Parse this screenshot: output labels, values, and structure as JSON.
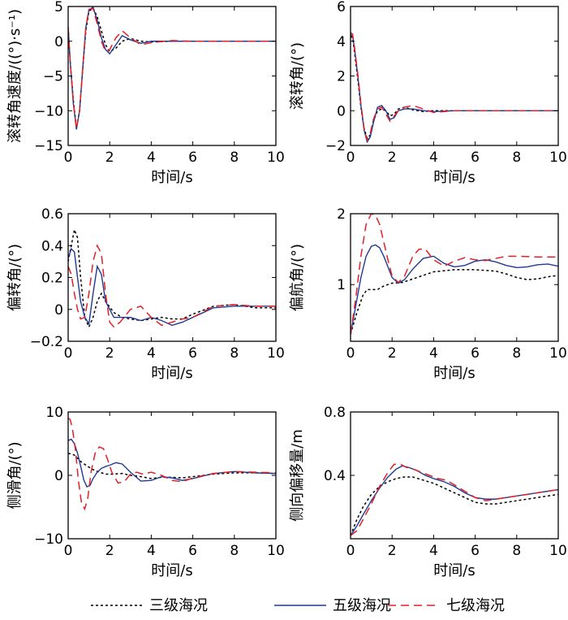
{
  "legend": [
    {
      "key": "s3",
      "label": "三级海况",
      "color": "#000000",
      "dash": "3,3"
    },
    {
      "key": "s5",
      "label": "五级海况",
      "color": "#1f3a93",
      "dash": ""
    },
    {
      "key": "s7",
      "label": "七级海况",
      "color": "#e0202a",
      "dash": "10,6"
    }
  ],
  "chart_data": [
    {
      "type": "line",
      "id": "roll-rate",
      "ylabel": "滚转角速度/((°)·s⁻¹)",
      "xlabel": "时间/s",
      "xlim": [
        0,
        10
      ],
      "ylim": [
        -15,
        5
      ],
      "xticks": [
        0,
        2,
        4,
        6,
        8,
        10
      ],
      "yticks": [
        -15,
        -10,
        -5,
        0,
        5
      ],
      "ytick_labels": [
        "−15",
        "−10",
        "−5",
        "0",
        "5"
      ],
      "series": [
        {
          "key": "s3",
          "x": [
            0,
            0.1,
            0.25,
            0.4,
            0.55,
            0.7,
            0.85,
            1.0,
            1.2,
            1.4,
            1.6,
            1.8,
            2.0,
            2.3,
            2.6,
            3.0,
            3.5,
            4.0,
            5.0,
            6.0,
            7.0,
            10.0
          ],
          "y": [
            2,
            -3,
            -8.5,
            -12.5,
            -10,
            -4,
            1.5,
            4.3,
            4.8,
            3.5,
            1.5,
            -0.5,
            -1.5,
            -1,
            0,
            0.4,
            0,
            -0.1,
            0,
            0,
            0,
            0
          ]
        },
        {
          "key": "s5",
          "x": [
            0,
            0.1,
            0.25,
            0.4,
            0.55,
            0.7,
            0.85,
            1.0,
            1.2,
            1.4,
            1.6,
            1.8,
            2.0,
            2.3,
            2.6,
            3.0,
            3.5,
            4.0,
            5.0,
            6.0,
            7.0,
            10.0
          ],
          "y": [
            2,
            -3,
            -9,
            -12.7,
            -10,
            -4,
            2,
            4.5,
            4.9,
            3,
            0.5,
            -1.2,
            -1.8,
            -0.5,
            0.8,
            0.2,
            -0.3,
            0,
            0,
            0,
            0,
            0
          ]
        },
        {
          "key": "s7",
          "x": [
            0,
            0.1,
            0.25,
            0.4,
            0.55,
            0.7,
            0.85,
            1.0,
            1.2,
            1.4,
            1.6,
            1.8,
            2.0,
            2.3,
            2.6,
            3.0,
            3.5,
            4.0,
            5.0,
            6.0,
            7.0,
            10.0
          ],
          "y": [
            2,
            -3,
            -8.8,
            -12.6,
            -10,
            -4,
            2,
            4.6,
            4.7,
            2.5,
            0,
            -1.5,
            -1.2,
            0.5,
            1.5,
            0.5,
            -0.5,
            -0.2,
            0.1,
            0,
            0,
            0
          ]
        }
      ]
    },
    {
      "type": "line",
      "id": "roll-angle",
      "ylabel": "滚转角/(°)",
      "xlabel": "时间/s",
      "xlim": [
        0,
        10
      ],
      "ylim": [
        -2,
        6
      ],
      "xticks": [
        0,
        2,
        4,
        6,
        8,
        10
      ],
      "yticks": [
        -2,
        0,
        2,
        4,
        6
      ],
      "ytick_labels": [
        "−2",
        "0",
        "2",
        "4",
        "6"
      ],
      "series": [
        {
          "key": "s3",
          "x": [
            0,
            0.1,
            0.2,
            0.35,
            0.5,
            0.65,
            0.8,
            0.95,
            1.1,
            1.3,
            1.5,
            1.7,
            1.9,
            2.1,
            2.3,
            2.6,
            3.0,
            3.5,
            4.0,
            5.0,
            7.0,
            10.0
          ],
          "y": [
            4.3,
            4.2,
            3.3,
            1.8,
            0.2,
            -1,
            -1.6,
            -1.4,
            -0.6,
            0,
            0.1,
            0,
            -0.3,
            -0.2,
            0.1,
            0.2,
            0.05,
            -0.05,
            0,
            0,
            0,
            0
          ]
        },
        {
          "key": "s5",
          "x": [
            0,
            0.1,
            0.2,
            0.35,
            0.5,
            0.65,
            0.8,
            0.95,
            1.1,
            1.3,
            1.5,
            1.7,
            1.9,
            2.1,
            2.3,
            2.6,
            3.0,
            3.5,
            4.0,
            5.0,
            7.0,
            10.0
          ],
          "y": [
            4.4,
            4.3,
            3.5,
            2,
            0.3,
            -1.1,
            -1.8,
            -1.5,
            -0.7,
            0.2,
            0.3,
            0,
            -0.5,
            -0.4,
            0,
            0.1,
            0.1,
            0,
            -0.05,
            0,
            0,
            0
          ]
        },
        {
          "key": "s7",
          "x": [
            0,
            0.1,
            0.2,
            0.35,
            0.5,
            0.65,
            0.8,
            0.95,
            1.1,
            1.3,
            1.5,
            1.7,
            1.9,
            2.1,
            2.3,
            2.6,
            3.0,
            3.5,
            4.0,
            5.0,
            7.0,
            10.0
          ],
          "y": [
            4.5,
            4.4,
            3.6,
            2.1,
            0.4,
            -1,
            -1.7,
            -1.3,
            -0.5,
            0.1,
            0.2,
            -0.2,
            -0.6,
            -0.3,
            0,
            0.2,
            0.3,
            0.1,
            -0.1,
            0,
            0,
            0
          ]
        }
      ]
    },
    {
      "type": "line",
      "id": "yaw-angle",
      "ylabel": "偏转角/(°)",
      "xlabel": "时间/s",
      "xlim": [
        0,
        10
      ],
      "ylim": [
        -0.2,
        0.6
      ],
      "xticks": [
        0,
        2,
        4,
        6,
        8,
        10
      ],
      "yticks": [
        -0.2,
        0,
        0.2,
        0.4,
        0.6
      ],
      "ytick_labels": [
        "−0.2",
        "0",
        "0.2",
        "0.4",
        "0.6"
      ],
      "series": [
        {
          "key": "s3",
          "x": [
            0,
            0.15,
            0.3,
            0.45,
            0.6,
            0.8,
            1.0,
            1.2,
            1.4,
            1.6,
            1.8,
            2.2,
            2.6,
            3.0,
            3.5,
            4.0,
            4.5,
            5.0,
            5.5,
            6.0,
            7.0,
            8.0,
            9.0,
            10.0
          ],
          "y": [
            0.3,
            0.4,
            0.5,
            0.45,
            0.2,
            -0.05,
            -0.11,
            -0.05,
            0.05,
            0.1,
            0.05,
            -0.02,
            -0.05,
            -0.06,
            -0.07,
            -0.06,
            -0.05,
            -0.06,
            -0.06,
            -0.03,
            0.02,
            0.03,
            0.01,
            0.01
          ]
        },
        {
          "key": "s5",
          "x": [
            0,
            0.15,
            0.3,
            0.45,
            0.6,
            0.8,
            1.0,
            1.2,
            1.4,
            1.6,
            1.8,
            2.2,
            2.6,
            3.0,
            3.5,
            4.0,
            4.5,
            5.0,
            5.5,
            6.0,
            7.0,
            8.0,
            9.0,
            10.0
          ],
          "y": [
            0.32,
            0.38,
            0.36,
            0.2,
            0.05,
            -0.05,
            -0.09,
            0.1,
            0.27,
            0.22,
            0.05,
            -0.05,
            -0.05,
            -0.05,
            -0.07,
            -0.05,
            -0.07,
            -0.1,
            -0.08,
            -0.05,
            0.01,
            0.02,
            0.02,
            0.02
          ]
        },
        {
          "key": "s7",
          "x": [
            0,
            0.15,
            0.3,
            0.45,
            0.6,
            0.8,
            1.0,
            1.2,
            1.4,
            1.6,
            1.8,
            2.0,
            2.2,
            2.5,
            3.0,
            3.5,
            4.0,
            4.5,
            5.0,
            5.5,
            6.0,
            7.0,
            8.0,
            9.0,
            10.0
          ],
          "y": [
            0.27,
            0.22,
            0.1,
            0,
            -0.06,
            -0.05,
            0.1,
            0.3,
            0.4,
            0.35,
            0.1,
            -0.08,
            -0.11,
            -0.08,
            0,
            0.02,
            -0.05,
            -0.1,
            -0.08,
            -0.06,
            -0.05,
            0.02,
            0.03,
            0.02,
            0.02
          ]
        }
      ]
    },
    {
      "type": "line",
      "id": "heading-angle",
      "ylabel": "偏航角/(°)",
      "xlabel": "时间/s",
      "xlim": [
        0,
        10
      ],
      "ylim": [
        0.2,
        2
      ],
      "xticks": [
        0,
        2,
        4,
        6,
        8,
        10
      ],
      "yticks": [
        1,
        2
      ],
      "ytick_labels": [
        "1",
        "2"
      ],
      "series": [
        {
          "key": "s3",
          "x": [
            0,
            0.3,
            0.6,
            0.8,
            1.0,
            1.3,
            1.6,
            2.0,
            2.5,
            3.0,
            3.5,
            4.0,
            5.0,
            6.0,
            7.0,
            7.5,
            8.0,
            8.5,
            9.0,
            9.5,
            10.0
          ],
          "y": [
            0.3,
            0.6,
            0.85,
            0.93,
            0.93,
            0.93,
            0.98,
            1.02,
            1.03,
            1.08,
            1.13,
            1.18,
            1.21,
            1.21,
            1.19,
            1.15,
            1.1,
            1.07,
            1.08,
            1.11,
            1.13
          ]
        },
        {
          "key": "s5",
          "x": [
            0,
            0.25,
            0.5,
            0.75,
            1.0,
            1.2,
            1.4,
            1.6,
            1.8,
            2.0,
            2.3,
            2.6,
            3.0,
            3.5,
            4.0,
            4.5,
            5.0,
            5.5,
            6.0,
            6.5,
            7.0,
            7.5,
            8.0,
            8.5,
            9.0,
            9.5,
            10.0
          ],
          "y": [
            0.3,
            0.7,
            1.1,
            1.4,
            1.54,
            1.56,
            1.52,
            1.4,
            1.25,
            1.1,
            1.02,
            1.07,
            1.22,
            1.37,
            1.4,
            1.3,
            1.25,
            1.27,
            1.33,
            1.35,
            1.32,
            1.27,
            1.24,
            1.25,
            1.28,
            1.29,
            1.26
          ]
        },
        {
          "key": "s7",
          "x": [
            0,
            0.25,
            0.5,
            0.75,
            1.0,
            1.2,
            1.4,
            1.6,
            1.8,
            2.0,
            2.3,
            2.6,
            3.0,
            3.3,
            3.6,
            4.0,
            4.5,
            5.0,
            5.5,
            6.0,
            6.5,
            7.0,
            7.5,
            8.0,
            9.0,
            10.0
          ],
          "y": [
            0.3,
            0.8,
            1.4,
            1.85,
            2.0,
            1.98,
            1.85,
            1.6,
            1.35,
            1.12,
            1.03,
            1.12,
            1.4,
            1.5,
            1.5,
            1.35,
            1.26,
            1.33,
            1.38,
            1.35,
            1.34,
            1.37,
            1.4,
            1.4,
            1.39,
            1.39
          ]
        }
      ]
    },
    {
      "type": "line",
      "id": "sideslip-angle",
      "ylabel": "侧滑角/(°)",
      "xlabel": "时间/s",
      "xlim": [
        0,
        10
      ],
      "ylim": [
        -10,
        10
      ],
      "xticks": [
        0,
        2,
        4,
        6,
        8,
        10
      ],
      "yticks": [
        -10,
        0,
        10
      ],
      "ytick_labels": [
        "−10",
        "0",
        "10"
      ],
      "series": [
        {
          "key": "s3",
          "x": [
            0,
            0.3,
            0.6,
            0.9,
            1.2,
            1.5,
            1.8,
            2.2,
            2.6,
            3.0,
            3.5,
            4.0,
            4.5,
            5.0,
            5.5,
            6.0,
            7.0,
            8.0,
            9.0,
            10.0
          ],
          "y": [
            3.5,
            3.2,
            2.2,
            1.5,
            0.9,
            0.5,
            0.2,
            0.2,
            0.3,
            0,
            -0.2,
            -0.5,
            -0.3,
            -0.3,
            -0.4,
            -0.2,
            0.2,
            0.4,
            0.4,
            0.3
          ]
        },
        {
          "key": "s5",
          "x": [
            0,
            0.15,
            0.3,
            0.45,
            0.6,
            0.75,
            0.9,
            1.05,
            1.2,
            1.4,
            1.6,
            1.8,
            2.0,
            2.3,
            2.6,
            3.0,
            3.5,
            4.0,
            4.5,
            5.0,
            5.5,
            6.0,
            7.0,
            8.0,
            9.0,
            10.0
          ],
          "y": [
            5.5,
            5.7,
            5,
            3.5,
            1.5,
            -0.7,
            -1.8,
            -1.6,
            -0.5,
            0.5,
            1.1,
            1.4,
            1.6,
            2.0,
            1.8,
            0.5,
            -0.9,
            -0.8,
            -0.2,
            -0.4,
            -0.8,
            -0.5,
            0.3,
            0.6,
            0.4,
            0.3
          ]
        },
        {
          "key": "s7",
          "x": [
            0,
            0.1,
            0.2,
            0.35,
            0.5,
            0.65,
            0.8,
            0.95,
            1.1,
            1.3,
            1.5,
            1.7,
            1.9,
            2.1,
            2.4,
            2.7,
            3.0,
            3.3,
            3.6,
            4.0,
            4.5,
            5.0,
            5.5,
            6.0,
            7.0,
            8.0,
            9.0,
            10.0
          ],
          "y": [
            9,
            8.8,
            7.5,
            4,
            -1,
            -4.5,
            -5.3,
            -3.5,
            0.5,
            3.5,
            4.5,
            4.2,
            2.5,
            0.5,
            -1.2,
            -1.0,
            0.2,
            0.5,
            0.2,
            0.5,
            0,
            -0.8,
            -1.0,
            -0.4,
            0.3,
            0.6,
            0.5,
            0.4
          ]
        }
      ]
    },
    {
      "type": "line",
      "id": "lateral-offset",
      "ylabel": "侧向偏移量/m",
      "xlabel": "时间/s",
      "xlim": [
        0,
        10
      ],
      "ylim": [
        0,
        0.8
      ],
      "xticks": [
        0,
        2,
        4,
        6,
        8,
        10
      ],
      "yticks": [
        0.4,
        0.8
      ],
      "ytick_labels": [
        "0.4",
        "0.8"
      ],
      "series": [
        {
          "key": "s3",
          "x": [
            0,
            0.3,
            0.6,
            1.0,
            1.4,
            1.8,
            2.2,
            2.6,
            3.0,
            3.5,
            4.0,
            4.5,
            5.0,
            5.5,
            6.0,
            6.5,
            7.0,
            7.5,
            8.0,
            8.5,
            9.0,
            9.5,
            10.0
          ],
          "y": [
            0.02,
            0.12,
            0.2,
            0.28,
            0.33,
            0.36,
            0.38,
            0.39,
            0.39,
            0.37,
            0.35,
            0.32,
            0.29,
            0.26,
            0.23,
            0.22,
            0.22,
            0.23,
            0.24,
            0.25,
            0.26,
            0.27,
            0.28
          ]
        },
        {
          "key": "s5",
          "x": [
            0,
            0.3,
            0.6,
            1.0,
            1.4,
            1.8,
            2.2,
            2.5,
            2.8,
            3.2,
            3.6,
            4.0,
            4.5,
            5.0,
            5.5,
            6.0,
            6.5,
            7.0,
            7.5,
            8.0,
            8.5,
            9.0,
            9.5,
            10.0
          ],
          "y": [
            0.02,
            0.08,
            0.15,
            0.24,
            0.32,
            0.39,
            0.44,
            0.46,
            0.45,
            0.43,
            0.4,
            0.38,
            0.36,
            0.33,
            0.29,
            0.26,
            0.25,
            0.25,
            0.26,
            0.27,
            0.28,
            0.29,
            0.3,
            0.31
          ]
        },
        {
          "key": "s7",
          "x": [
            0,
            0.3,
            0.6,
            1.0,
            1.4,
            1.8,
            2.1,
            2.4,
            2.7,
            3.0,
            3.4,
            3.8,
            4.2,
            4.6,
            5.0,
            5.5,
            6.0,
            6.5,
            7.0,
            7.5,
            8.0,
            8.5,
            9.0,
            9.5,
            10.0
          ],
          "y": [
            0.02,
            0.05,
            0.12,
            0.22,
            0.33,
            0.42,
            0.47,
            0.47,
            0.45,
            0.44,
            0.42,
            0.4,
            0.38,
            0.37,
            0.34,
            0.3,
            0.26,
            0.24,
            0.25,
            0.26,
            0.27,
            0.28,
            0.29,
            0.3,
            0.31
          ]
        }
      ]
    }
  ]
}
